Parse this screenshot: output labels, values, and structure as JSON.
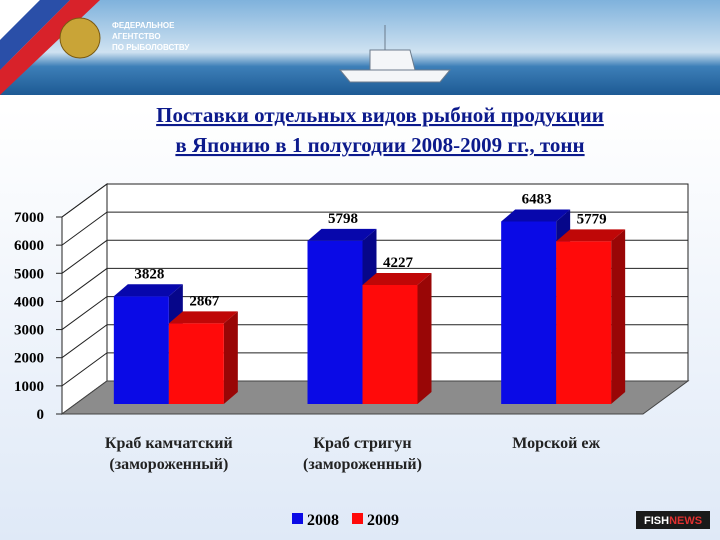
{
  "header": {
    "agency": [
      "ФЕДЕРАЛЬНОЕ",
      "АГЕНТСТВО",
      "ПО РЫБОЛОВСТВУ"
    ]
  },
  "logo": {
    "fish": "FISH",
    "news": "NEWS"
  },
  "chart_data": {
    "type": "bar3d",
    "title": [
      "Поставки отдельных видов рыбной продукции",
      "в Японию в 1 полугодии 2008-2009 гг., тонн"
    ],
    "categories": [
      [
        "Краб камчатский",
        "(замороженный)"
      ],
      [
        "Краб стригун",
        "(замороженный)"
      ],
      [
        "Морской еж"
      ]
    ],
    "series": [
      {
        "name": "2008",
        "color": "#0a0ae6",
        "values": [
          3828,
          5798,
          6483
        ]
      },
      {
        "name": "2009",
        "color": "#ff0a0a",
        "values": [
          2867,
          4227,
          5779
        ]
      }
    ],
    "ylim": [
      0,
      7000
    ],
    "yticks": [
      0,
      1000,
      2000,
      3000,
      4000,
      5000,
      6000,
      7000
    ],
    "grid": true,
    "legend": "bottom"
  }
}
